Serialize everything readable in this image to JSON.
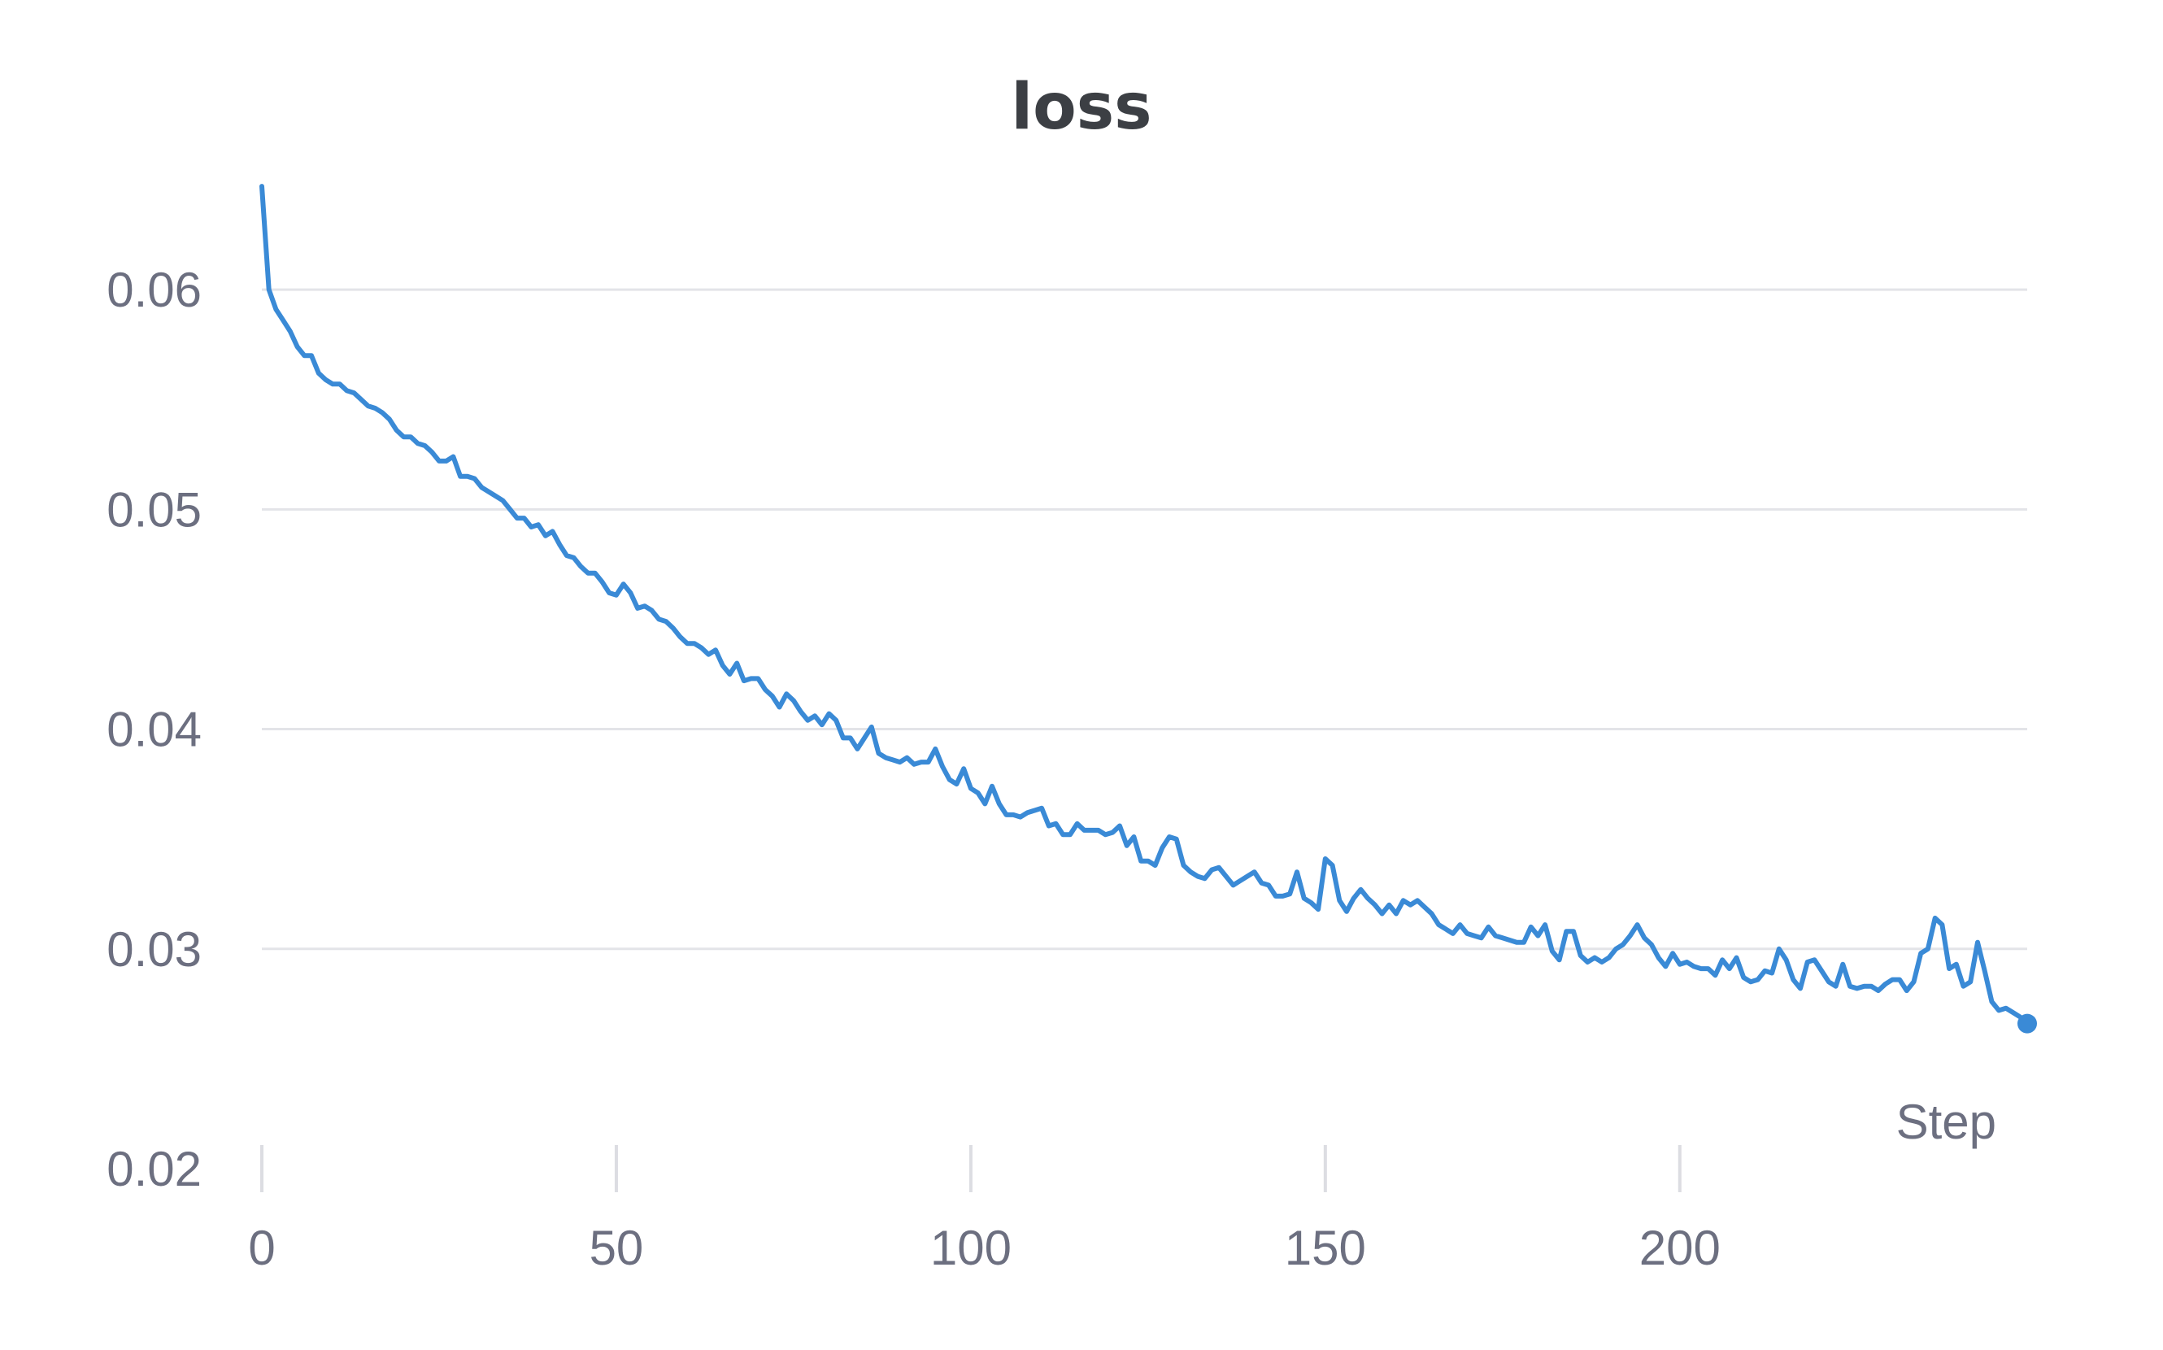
{
  "chart_data": {
    "type": "line",
    "title": "loss",
    "xlabel": "Step",
    "ylabel": "",
    "xlim": [
      0,
      249
    ],
    "ylim": [
      0.02,
      0.065
    ],
    "x_ticks": [
      0,
      50,
      100,
      150,
      200
    ],
    "x_tick_labels": [
      "0",
      "50",
      "100",
      "150",
      "200"
    ],
    "y_ticks": [
      0.02,
      0.03,
      0.04,
      0.05,
      0.06
    ],
    "y_tick_labels": [
      "0.02",
      "0.03",
      "0.04",
      "0.05",
      "0.06"
    ],
    "grid": true,
    "legend": "none",
    "series": [
      {
        "color": "#3a8ad6",
        "x_start": 0,
        "x_step": 1,
        "end_marker": true,
        "values": [
          0.0647,
          0.06,
          0.0591,
          0.0586,
          0.0581,
          0.0574,
          0.057,
          0.057,
          0.0562,
          0.0559,
          0.0557,
          0.0557,
          0.0554,
          0.0553,
          0.055,
          0.0547,
          0.0546,
          0.0544,
          0.0541,
          0.0536,
          0.0533,
          0.0533,
          0.053,
          0.0529,
          0.0526,
          0.0522,
          0.0522,
          0.0524,
          0.0515,
          0.0515,
          0.0514,
          0.051,
          0.0508,
          0.0506,
          0.0504,
          0.05,
          0.0496,
          0.0496,
          0.0492,
          0.0493,
          0.0488,
          0.049,
          0.0484,
          0.0479,
          0.0478,
          0.0474,
          0.0471,
          0.0471,
          0.0467,
          0.0462,
          0.0461,
          0.0466,
          0.0462,
          0.0455,
          0.0456,
          0.0454,
          0.045,
          0.0449,
          0.0446,
          0.0442,
          0.0439,
          0.0439,
          0.0437,
          0.0434,
          0.0436,
          0.0429,
          0.0425,
          0.043,
          0.0422,
          0.0423,
          0.0423,
          0.0418,
          0.0415,
          0.041,
          0.0416,
          0.0413,
          0.0408,
          0.0404,
          0.0406,
          0.0402,
          0.0407,
          0.0404,
          0.0396,
          0.0396,
          0.0391,
          0.0396,
          0.0401,
          0.0389,
          0.0387,
          0.0386,
          0.0385,
          0.0387,
          0.0384,
          0.0385,
          0.0385,
          0.0391,
          0.0383,
          0.0377,
          0.0375,
          0.0382,
          0.0373,
          0.0371,
          0.0366,
          0.0374,
          0.0366,
          0.0361,
          0.0361,
          0.036,
          0.0362,
          0.0363,
          0.0364,
          0.0356,
          0.0357,
          0.0352,
          0.0352,
          0.0357,
          0.0354,
          0.0354,
          0.0354,
          0.0352,
          0.0353,
          0.0356,
          0.0347,
          0.0351,
          0.034,
          0.034,
          0.0338,
          0.0346,
          0.0351,
          0.035,
          0.0338,
          0.0335,
          0.0333,
          0.0332,
          0.0336,
          0.0337,
          0.0333,
          0.0329,
          0.0331,
          0.0333,
          0.0335,
          0.033,
          0.0329,
          0.0324,
          0.0324,
          0.0325,
          0.0335,
          0.0323,
          0.0321,
          0.0318,
          0.0341,
          0.0338,
          0.0322,
          0.0317,
          0.0323,
          0.0327,
          0.0323,
          0.032,
          0.0316,
          0.032,
          0.0316,
          0.0322,
          0.032,
          0.0322,
          0.0319,
          0.0316,
          0.0311,
          0.0309,
          0.0307,
          0.0311,
          0.0307,
          0.0306,
          0.0305,
          0.031,
          0.0306,
          0.0305,
          0.0304,
          0.0303,
          0.0303,
          0.031,
          0.0306,
          0.0311,
          0.0299,
          0.0295,
          0.0308,
          0.0308,
          0.0297,
          0.0294,
          0.0296,
          0.0294,
          0.0296,
          0.03,
          0.0302,
          0.0306,
          0.0311,
          0.0305,
          0.0302,
          0.0296,
          0.0292,
          0.0298,
          0.0293,
          0.0294,
          0.0292,
          0.0291,
          0.0291,
          0.0288,
          0.0295,
          0.0291,
          0.0296,
          0.0287,
          0.0285,
          0.0286,
          0.029,
          0.0289,
          0.03,
          0.0295,
          0.0286,
          0.0282,
          0.0294,
          0.0295,
          0.029,
          0.0285,
          0.0283,
          0.0293,
          0.0283,
          0.0282,
          0.0283,
          0.0283,
          0.0281,
          0.0284,
          0.0286,
          0.0286,
          0.0281,
          0.0285,
          0.0298,
          0.03,
          0.0314,
          0.0311,
          0.0291,
          0.0293,
          0.0283,
          0.0285,
          0.0303,
          0.029,
          0.0276,
          0.0272,
          0.0273,
          0.0271,
          0.0269,
          0.0266
        ]
      }
    ]
  }
}
